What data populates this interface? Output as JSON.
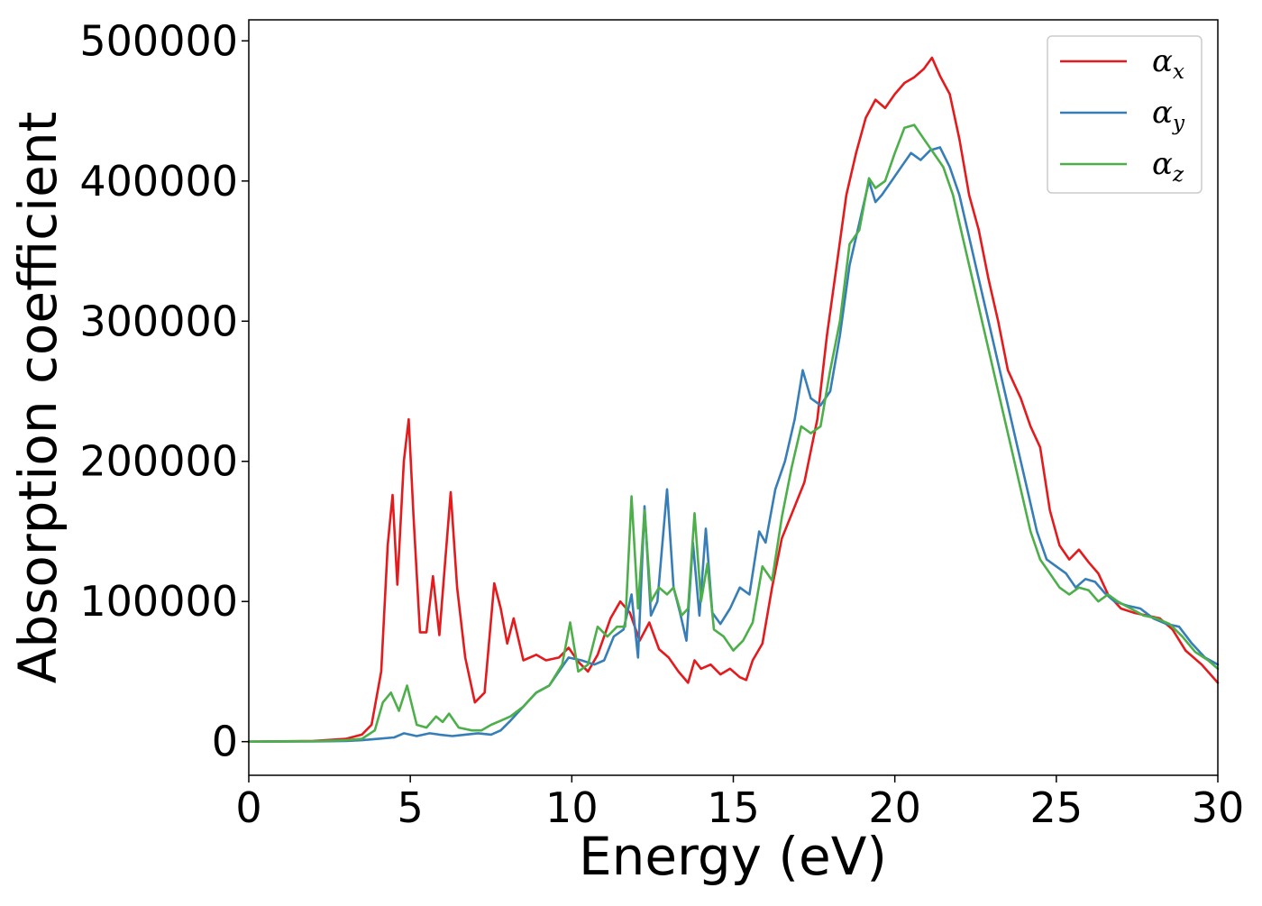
{
  "chart_data": {
    "type": "line",
    "title": "",
    "xlabel": "Energy (eV)",
    "ylabel": "Absorption coefficient",
    "xlim": [
      0,
      30
    ],
    "ylim": [
      -24000,
      515000
    ],
    "xticks": [
      0,
      5,
      10,
      15,
      20,
      25,
      30
    ],
    "yticks": [
      0,
      100000,
      200000,
      300000,
      400000,
      500000
    ],
    "grid": false,
    "legend_position": "top-right",
    "colors": {
      "alpha_x": "#e41a1c",
      "alpha_y": "#377eb8",
      "alpha_z": "#4daf4a"
    },
    "series": [
      {
        "name": "α",
        "subscript": "x",
        "color": "#e41a1c",
        "x": [
          0,
          2,
          3,
          3.5,
          3.8,
          4.1,
          4.3,
          4.45,
          4.6,
          4.8,
          4.95,
          5.1,
          5.3,
          5.5,
          5.7,
          5.9,
          6.05,
          6.25,
          6.45,
          6.7,
          7.0,
          7.3,
          7.6,
          7.8,
          8.0,
          8.2,
          8.5,
          8.9,
          9.2,
          9.6,
          9.9,
          10.2,
          10.5,
          10.8,
          11.2,
          11.5,
          11.8,
          12.1,
          12.4,
          12.7,
          13.0,
          13.3,
          13.6,
          13.8,
          14.0,
          14.3,
          14.6,
          14.9,
          15.2,
          15.4,
          15.6,
          15.9,
          16.2,
          16.5,
          16.8,
          17.2,
          17.6,
          17.9,
          18.2,
          18.5,
          18.8,
          19.1,
          19.4,
          19.7,
          20.0,
          20.3,
          20.6,
          20.9,
          21.15,
          21.4,
          21.7,
          22.0,
          22.3,
          22.6,
          22.9,
          23.2,
          23.5,
          23.9,
          24.2,
          24.5,
          24.8,
          25.1,
          25.4,
          25.7,
          26.0,
          26.3,
          26.6,
          27.0,
          27.4,
          27.8,
          28.2,
          28.6,
          29.0,
          29.5,
          30.0
        ],
        "y": [
          0,
          500,
          2000,
          5000,
          12000,
          50000,
          140000,
          176000,
          112000,
          200000,
          230000,
          160000,
          78000,
          78000,
          118000,
          76000,
          120000,
          178000,
          110000,
          60000,
          28000,
          35000,
          113000,
          95000,
          70000,
          88000,
          58000,
          62000,
          58000,
          60000,
          67000,
          57000,
          50000,
          62000,
          88000,
          100000,
          92000,
          72000,
          85000,
          66000,
          60000,
          50000,
          42000,
          58000,
          52000,
          55000,
          48000,
          52000,
          46000,
          44000,
          58000,
          70000,
          110000,
          145000,
          162000,
          185000,
          230000,
          290000,
          340000,
          390000,
          420000,
          445000,
          458000,
          452000,
          462000,
          470000,
          474000,
          480000,
          488000,
          475000,
          462000,
          430000,
          390000,
          365000,
          330000,
          300000,
          265000,
          245000,
          225000,
          210000,
          165000,
          140000,
          130000,
          137000,
          128000,
          120000,
          105000,
          95000,
          92000,
          90000,
          88000,
          80000,
          65000,
          55000,
          42000
        ]
      },
      {
        "name": "α",
        "subscript": "y",
        "color": "#377eb8",
        "x": [
          0,
          2,
          3,
          3.5,
          4.0,
          4.5,
          4.8,
          5.2,
          5.6,
          5.9,
          6.3,
          6.7,
          7.1,
          7.5,
          7.8,
          8.1,
          8.5,
          8.9,
          9.3,
          9.6,
          9.9,
          10.3,
          10.7,
          11.0,
          11.3,
          11.6,
          11.85,
          12.05,
          12.25,
          12.45,
          12.65,
          12.95,
          13.15,
          13.35,
          13.55,
          13.75,
          13.95,
          14.15,
          14.35,
          14.6,
          14.9,
          15.2,
          15.5,
          15.8,
          16.0,
          16.3,
          16.6,
          16.9,
          17.15,
          17.4,
          17.7,
          18.0,
          18.3,
          18.6,
          18.9,
          19.2,
          19.4,
          19.6,
          19.9,
          20.2,
          20.5,
          20.8,
          21.1,
          21.4,
          21.7,
          22.0,
          22.3,
          22.6,
          22.9,
          23.2,
          23.5,
          23.8,
          24.1,
          24.4,
          24.7,
          25.0,
          25.3,
          25.6,
          25.9,
          26.2,
          26.5,
          26.8,
          27.2,
          27.6,
          28.0,
          28.4,
          28.8,
          29.2,
          29.6,
          30.0
        ],
        "y": [
          0,
          200,
          500,
          1000,
          2000,
          3000,
          6000,
          4000,
          6000,
          5000,
          4000,
          5000,
          6000,
          5000,
          8000,
          15000,
          25000,
          35000,
          40000,
          50000,
          60000,
          58000,
          55000,
          58000,
          75000,
          80000,
          105000,
          60000,
          168000,
          90000,
          100000,
          180000,
          110000,
          92000,
          72000,
          142000,
          90000,
          152000,
          92000,
          84000,
          95000,
          110000,
          105000,
          150000,
          142000,
          180000,
          200000,
          230000,
          265000,
          245000,
          240000,
          250000,
          290000,
          340000,
          370000,
          400000,
          385000,
          390000,
          400000,
          410000,
          420000,
          415000,
          422000,
          424000,
          410000,
          390000,
          360000,
          330000,
          300000,
          270000,
          240000,
          210000,
          180000,
          150000,
          130000,
          125000,
          120000,
          110000,
          116000,
          114000,
          106000,
          100000,
          97000,
          95000,
          88000,
          84000,
          82000,
          70000,
          60000,
          55000
        ]
      },
      {
        "name": "α",
        "subscript": "z",
        "color": "#4daf4a",
        "x": [
          0,
          2,
          3,
          3.5,
          3.9,
          4.15,
          4.4,
          4.65,
          4.9,
          5.2,
          5.5,
          5.8,
          6.0,
          6.2,
          6.5,
          6.9,
          7.2,
          7.5,
          7.8,
          8.1,
          8.5,
          8.9,
          9.3,
          9.7,
          9.95,
          10.2,
          10.5,
          10.8,
          11.1,
          11.4,
          11.65,
          11.85,
          12.05,
          12.25,
          12.45,
          12.7,
          12.95,
          13.15,
          13.4,
          13.6,
          13.8,
          14.0,
          14.2,
          14.4,
          14.7,
          15.0,
          15.3,
          15.6,
          15.9,
          16.2,
          16.5,
          16.8,
          17.1,
          17.4,
          17.7,
          18.0,
          18.3,
          18.6,
          18.9,
          19.2,
          19.4,
          19.7,
          20.0,
          20.3,
          20.6,
          20.9,
          21.2,
          21.5,
          21.8,
          22.1,
          22.4,
          22.7,
          23.0,
          23.3,
          23.6,
          23.9,
          24.2,
          24.5,
          24.8,
          25.1,
          25.4,
          25.7,
          26.0,
          26.3,
          26.6,
          26.9,
          27.3,
          27.7,
          28.1,
          28.5,
          28.9,
          29.3,
          29.7,
          30.0
        ],
        "y": [
          0,
          300,
          1000,
          2000,
          8000,
          28000,
          35000,
          22000,
          40000,
          12000,
          10000,
          18000,
          14000,
          20000,
          10000,
          8000,
          8000,
          12000,
          15000,
          18000,
          25000,
          35000,
          40000,
          55000,
          85000,
          50000,
          55000,
          82000,
          75000,
          82000,
          82000,
          175000,
          95000,
          165000,
          100000,
          110000,
          105000,
          110000,
          90000,
          95000,
          163000,
          100000,
          127000,
          80000,
          75000,
          65000,
          72000,
          85000,
          125000,
          115000,
          160000,
          195000,
          225000,
          220000,
          225000,
          265000,
          300000,
          355000,
          365000,
          402000,
          395000,
          400000,
          420000,
          438000,
          440000,
          430000,
          420000,
          410000,
          390000,
          360000,
          330000,
          300000,
          270000,
          240000,
          210000,
          180000,
          150000,
          130000,
          120000,
          110000,
          105000,
          110000,
          108000,
          100000,
          105000,
          100000,
          95000,
          90000,
          88000,
          84000,
          75000,
          64000,
          58000,
          52000
        ]
      }
    ]
  }
}
